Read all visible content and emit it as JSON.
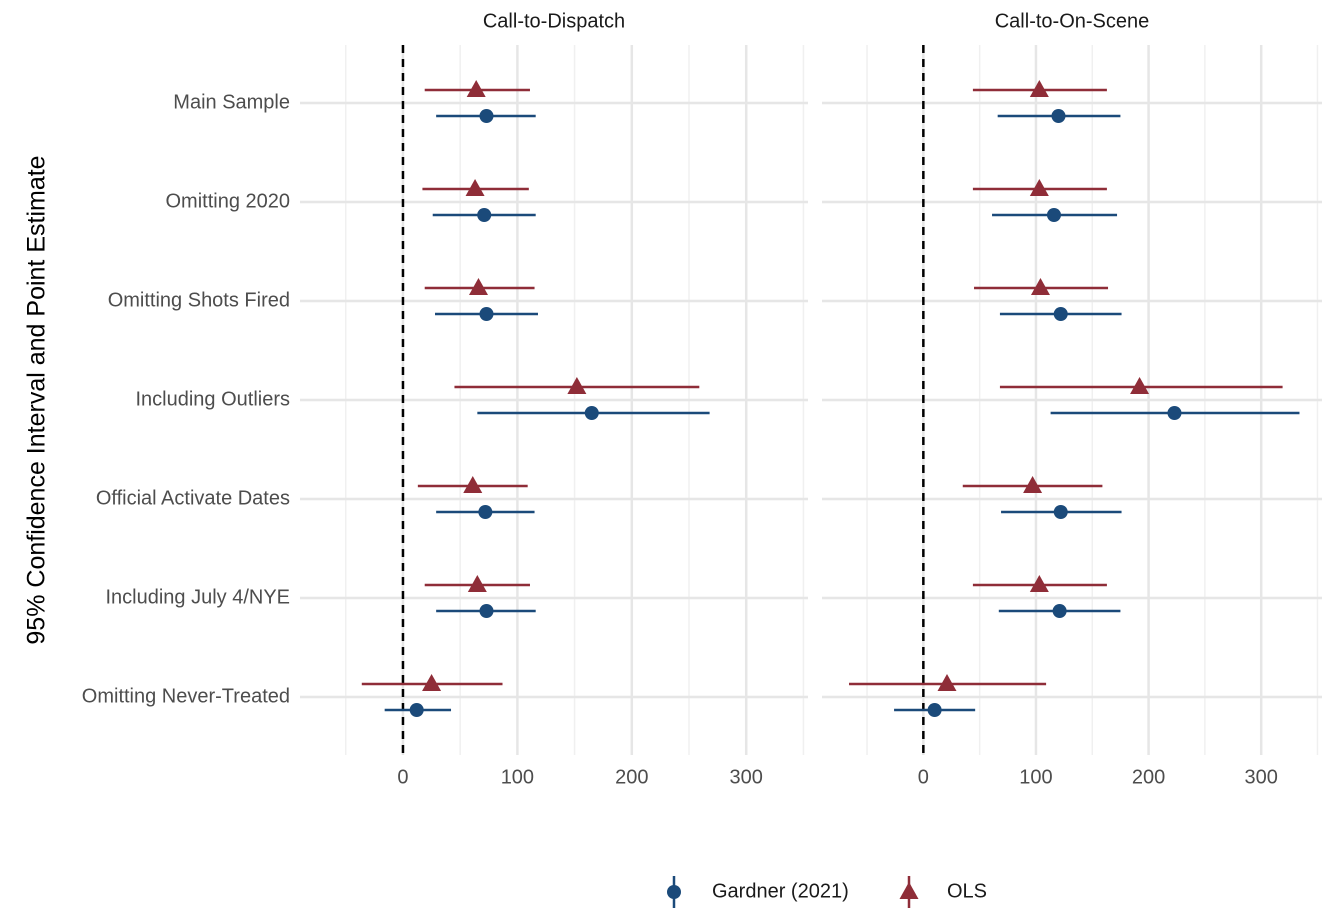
{
  "chart_data": {
    "type": "dot-errorbar",
    "ylabel": "95% Confidence Interval and Point Estimate",
    "categories": [
      "Main Sample",
      "Omitting 2020",
      "Omitting Shots Fired",
      "Including Outliers",
      "Official Activate Dates",
      "Including July 4/NYE",
      "Omitting Never-Treated"
    ],
    "xlim": [
      -90,
      354
    ],
    "xticks": [
      0,
      100,
      200,
      300
    ],
    "xminor": [
      -50,
      50,
      150,
      250,
      350
    ],
    "refline": 0,
    "grid": true,
    "legend": "bottom",
    "panels": [
      {
        "title": "Call-to-Dispatch",
        "series": [
          {
            "name": "Gardner (2021)",
            "color": "#1b4a7a",
            "marker": "circle",
            "values": [
              73,
              71,
              73,
              165,
              72,
              73,
              12
            ],
            "lower": [
              29,
              26,
              28,
              65,
              29,
              29,
              -16
            ],
            "upper": [
              116,
              116,
              118,
              268,
              115,
              116,
              42
            ]
          },
          {
            "name": "OLS",
            "color": "#8f2d38",
            "marker": "triangle",
            "values": [
              64,
              63,
              66,
              152,
              61,
              65,
              25
            ],
            "lower": [
              19,
              17,
              19,
              45,
              13,
              19,
              -36
            ],
            "upper": [
              111,
              110,
              115,
              259,
              109,
              111,
              87
            ]
          }
        ]
      },
      {
        "title": "Call-to-On-Scene",
        "series": [
          {
            "values": [
              120,
              116,
              122,
              223,
              122,
              121,
              10
            ],
            "lower": [
              66,
              61,
              68,
              113,
              69,
              67,
              -26
            ],
            "upper": [
              175,
              172,
              176,
              334,
              176,
              175,
              46
            ]
          },
          {
            "values": [
              103,
              103,
              104,
              192,
              97,
              103,
              21
            ],
            "lower": [
              44,
              44,
              45,
              68,
              35,
              44,
              -66
            ],
            "upper": [
              163,
              163,
              164,
              319,
              159,
              163,
              109
            ]
          }
        ]
      }
    ]
  }
}
